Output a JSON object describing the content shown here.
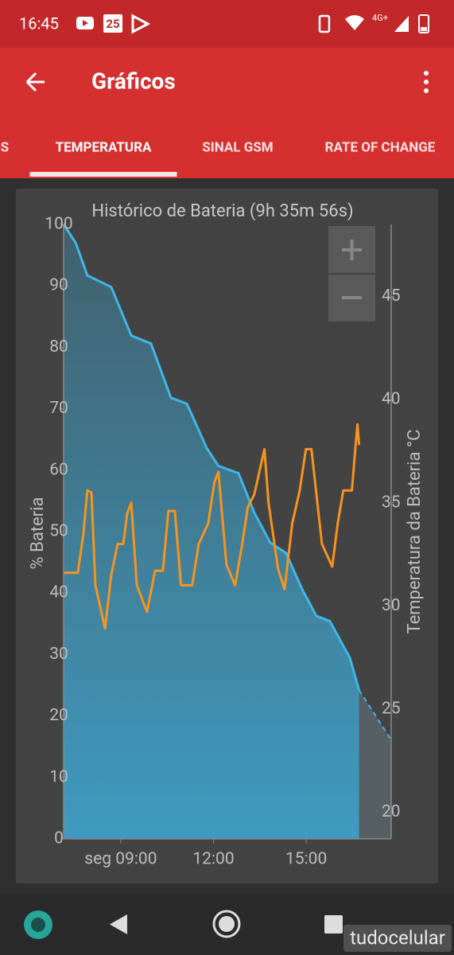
{
  "status_bar": {
    "time": "16:45",
    "badge": "25",
    "network": "4G+"
  },
  "app_bar": {
    "title": "Gráficos"
  },
  "tabs": {
    "items": [
      "S",
      "TEMPERATURA",
      "SINAL GSM",
      "RATE OF CHANGE"
    ],
    "active": 1
  },
  "chart_data": {
    "type": "line",
    "title": "Histórico de Bateria (9h 35m 56s)",
    "ylabel": "% Bateria",
    "y2label": "Temperatura da Bateria °C",
    "xlim": [
      7.15,
      17.75
    ],
    "xticks": [
      {
        "value": 9,
        "label": "seg 09:00"
      },
      {
        "value": 12,
        "label": "12:00"
      },
      {
        "value": 15,
        "label": "15:00"
      }
    ],
    "ylim": [
      0,
      100
    ],
    "yticks": [
      0,
      10,
      20,
      30,
      40,
      50,
      60,
      70,
      80,
      90,
      100
    ],
    "y2lim": [
      18.7,
      48.5
    ],
    "y2ticks": [
      20,
      25,
      30,
      35,
      40,
      45
    ],
    "series": [
      {
        "color": "#3db8ea",
        "fill": true,
        "x": [
          7.15,
          7.54,
          7.92,
          8.69,
          9.34,
          9.98,
          10.62,
          11.14,
          11.78,
          12.16,
          12.81,
          13.32,
          13.84,
          14.35,
          14.87,
          15.33,
          15.77,
          16.41,
          16.71
        ],
        "values": [
          100,
          97,
          91.7,
          89.8,
          81.9,
          80.6,
          71.8,
          70.8,
          63.6,
          60.7,
          59.5,
          53.1,
          48.2,
          46.5,
          40.6,
          36.3,
          35.4,
          29.5,
          24.2
        ]
      },
      {
        "color": "#3db8ea",
        "dashed": true,
        "x": [
          16.71,
          17.75
        ],
        "values": [
          24.2,
          16.1
        ]
      },
      {
        "color": "#f7941d",
        "axis": "y2",
        "x": [
          7.15,
          7.61,
          7.79,
          7.92,
          8.05,
          8.18,
          8.49,
          8.69,
          8.9,
          9.08,
          9.21,
          9.34,
          9.52,
          9.85,
          10.11,
          10.36,
          10.54,
          10.75,
          10.95,
          11.31,
          11.52,
          11.83,
          12.03,
          12.16,
          12.42,
          12.7,
          12.93,
          13.11,
          13.32,
          13.65,
          13.78,
          14.09,
          14.3,
          14.55,
          14.79,
          14.99,
          15.17,
          15.51,
          15.84,
          16.02,
          16.2,
          16.48,
          16.61,
          16.66,
          16.71
        ],
        "values": [
          31.6,
          31.6,
          33.5,
          35.6,
          35.5,
          31,
          28.9,
          31.5,
          33,
          33,
          34.5,
          35,
          31,
          29.7,
          31.7,
          31.7,
          34.6,
          34.6,
          31,
          31,
          33,
          34,
          36,
          36.5,
          32,
          31,
          33,
          34.8,
          35.4,
          37.6,
          35,
          31.8,
          30.8,
          34,
          35.6,
          37.6,
          37.6,
          33,
          31.9,
          34,
          35.6,
          35.6,
          38,
          38.8,
          37.8
        ]
      }
    ]
  },
  "watermark": "tudocelular"
}
